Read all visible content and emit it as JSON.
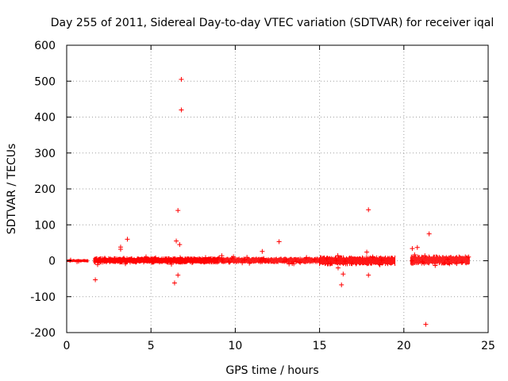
{
  "chart_data": {
    "type": "scatter",
    "title": "Day 255 of 2011, Sidereal Day-to-day VTEC variation (SDTVAR) for receiver iqal",
    "xlabel": "GPS time / hours",
    "ylabel": "SDTVAR / TECUs",
    "xlim": [
      0,
      25
    ],
    "ylim": [
      -200,
      600
    ],
    "xticks": [
      0,
      5,
      10,
      15,
      20,
      25
    ],
    "yticks": [
      -200,
      -100,
      0,
      100,
      200,
      300,
      400,
      500,
      600
    ],
    "grid": true,
    "marker": "+",
    "color": "#ff0000",
    "series": [
      {
        "name": "SDTVAR",
        "dense_band": [
          {
            "x_start": 0.0,
            "x_end": 1.3,
            "y_min": -4,
            "y_max": 4
          },
          {
            "x_start": 1.6,
            "x_end": 9.0,
            "y_min": -8,
            "y_max": 10
          },
          {
            "x_start": 9.0,
            "x_end": 15.0,
            "y_min": -7,
            "y_max": 9
          },
          {
            "x_start": 15.0,
            "x_end": 19.5,
            "y_min": -12,
            "y_max": 12
          },
          {
            "x_start": 20.4,
            "x_end": 23.9,
            "y_min": -10,
            "y_max": 14
          }
        ],
        "x": [
          6.8,
          6.8,
          6.6,
          17.9,
          21.5,
          21.3,
          3.6,
          12.6,
          6.5,
          3.2,
          3.2,
          11.6,
          6.7,
          1.7,
          6.4,
          6.6,
          16.3,
          16.4,
          17.9,
          17.8,
          20.5,
          20.8,
          16.1,
          9.2
        ],
        "y": [
          505,
          420,
          140,
          142,
          75,
          -177,
          60,
          53,
          55,
          38,
          32,
          26,
          45,
          -53,
          -62,
          -40,
          -67,
          -37,
          -40,
          24,
          34,
          37,
          -20,
          14
        ]
      }
    ]
  }
}
